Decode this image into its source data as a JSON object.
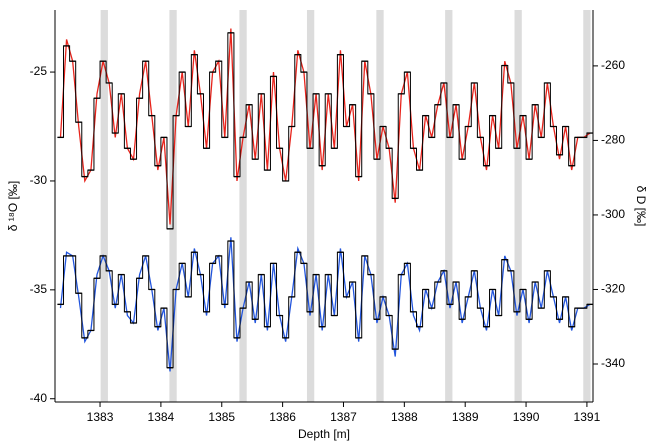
{
  "chart_data": {
    "type": "line",
    "xlabel": "Depth [m]",
    "ylabel": "δ ¹⁸O [‰]",
    "y2label": "δ D [‰]",
    "xlim": [
      1382.26,
      1391.1
    ],
    "xticks": [
      1383,
      1384,
      1385,
      1386,
      1387,
      1388,
      1389,
      1390,
      1391
    ],
    "ylim": [
      -40.15,
      -22.15
    ],
    "yticks": [
      -40,
      -35,
      -30,
      -25
    ],
    "y2lim": [
      -350.2,
      -245
    ],
    "y2ticks": [
      -340,
      -320,
      -300,
      -280,
      -260
    ],
    "bands": [
      1383.07,
      1384.2,
      1385.35,
      1386.46,
      1387.6,
      1388.73,
      1389.87,
      1391.0
    ],
    "band_width": 0.12,
    "band_color": "#dcdcdc",
    "x": [
      1382.35,
      1382.45,
      1382.55,
      1382.65,
      1382.75,
      1382.85,
      1382.95,
      1383.05,
      1383.15,
      1383.25,
      1383.35,
      1383.45,
      1383.55,
      1383.65,
      1383.75,
      1383.85,
      1383.95,
      1384.05,
      1384.15,
      1384.25,
      1384.35,
      1384.45,
      1384.55,
      1384.65,
      1384.75,
      1384.85,
      1384.95,
      1385.05,
      1385.15,
      1385.25,
      1385.35,
      1385.45,
      1385.55,
      1385.65,
      1385.75,
      1385.85,
      1385.95,
      1386.05,
      1386.15,
      1386.25,
      1386.35,
      1386.45,
      1386.55,
      1386.65,
      1386.75,
      1386.85,
      1386.95,
      1387.05,
      1387.15,
      1387.25,
      1387.35,
      1387.45,
      1387.55,
      1387.65,
      1387.75,
      1387.85,
      1387.95,
      1388.05,
      1388.15,
      1388.25,
      1388.35,
      1388.45,
      1388.55,
      1388.65,
      1388.75,
      1388.85,
      1388.95,
      1389.05,
      1389.15,
      1389.25,
      1389.35,
      1389.45,
      1389.55,
      1389.65,
      1389.75,
      1389.85,
      1389.95,
      1390.05,
      1390.15,
      1390.25,
      1390.35,
      1390.45,
      1390.55,
      1390.65,
      1390.75,
      1390.85,
      1390.95,
      1391.05
    ],
    "series": [
      {
        "color": "#e8241c",
        "style": "line",
        "values": [
          -28,
          -23.5,
          -24.5,
          -27.5,
          -30,
          -29.5,
          -26,
          -24.5,
          -25.5,
          -28,
          -26,
          -28.5,
          -29,
          -26,
          -24.5,
          -27,
          -29.5,
          -28,
          -32,
          -27,
          -25,
          -27.5,
          -24,
          -26,
          -28.5,
          -25,
          -24.5,
          -28,
          -23,
          -30,
          -28,
          -26.5,
          -29,
          -26,
          -29.5,
          -25,
          -28.5,
          -30,
          -27.5,
          -24,
          -25,
          -28.5,
          -26,
          -29.5,
          -26,
          -28.5,
          -24,
          -27.5,
          -26.5,
          -30,
          -24.5,
          -26,
          -29,
          -27.5,
          -28.5,
          -31,
          -26,
          -25,
          -28.5,
          -29.5,
          -27,
          -28,
          -26.5,
          -25.5,
          -28,
          -26.5,
          -29,
          -27.5,
          -25.5,
          -28,
          -29.5,
          -27,
          -28.5,
          -24.5,
          -25.5,
          -28.5,
          -27,
          -29,
          -26.5,
          -28,
          -25.5,
          -27.5,
          -29,
          -27.5,
          -29.5,
          -28,
          -28,
          -27.8
        ]
      },
      {
        "color": "#000000",
        "style": "step",
        "values": [
          -28,
          -23.8,
          -24.5,
          -27.3,
          -29.8,
          -29.5,
          -26.2,
          -24.5,
          -25.5,
          -27.8,
          -26,
          -28.5,
          -29,
          -26.2,
          -24.5,
          -27,
          -29.3,
          -28,
          -32.2,
          -27,
          -25,
          -27.5,
          -24.2,
          -26,
          -28.5,
          -25,
          -24.5,
          -28,
          -23.2,
          -29.8,
          -28,
          -26.5,
          -29,
          -26,
          -29.5,
          -25.2,
          -28.5,
          -30,
          -27.5,
          -24.2,
          -25,
          -28.5,
          -26,
          -29.3,
          -26,
          -28.5,
          -24.2,
          -27.5,
          -26.5,
          -29.8,
          -24.5,
          -26,
          -29,
          -27.5,
          -28.5,
          -30.8,
          -26,
          -25,
          -28.5,
          -29.5,
          -27,
          -28,
          -26.5,
          -25.5,
          -28,
          -26.5,
          -29,
          -27.5,
          -25.5,
          -28,
          -29.3,
          -27,
          -28.5,
          -24.7,
          -25.5,
          -28.5,
          -27,
          -29,
          -26.5,
          -28,
          -25.5,
          -27.5,
          -28.8,
          -27.5,
          -29.3,
          -28,
          -28,
          -27.8
        ]
      },
      {
        "color": "#2255dd",
        "style": "line",
        "axis": "y2",
        "values": [
          -325,
          -310,
          -311,
          -322,
          -334,
          -331,
          -316,
          -311,
          -315,
          -325,
          -316,
          -327,
          -329,
          -316,
          -311,
          -320,
          -331,
          -325,
          -342,
          -320,
          -313,
          -322,
          -309,
          -316,
          -327,
          -313,
          -311,
          -325,
          -306,
          -334,
          -325,
          -318,
          -329,
          -316,
          -331,
          -313,
          -327,
          -334,
          -322,
          -309,
          -313,
          -327,
          -316,
          -331,
          -316,
          -327,
          -309,
          -322,
          -318,
          -334,
          -311,
          -316,
          -329,
          -322,
          -327,
          -338,
          -316,
          -313,
          -327,
          -331,
          -320,
          -325,
          -318,
          -315,
          -325,
          -318,
          -329,
          -322,
          -315,
          -325,
          -331,
          -320,
          -327,
          -311,
          -315,
          -327,
          -320,
          -329,
          -318,
          -325,
          -315,
          -322,
          -329,
          -322,
          -331,
          -325,
          -325,
          -324
        ]
      },
      {
        "color": "#000000",
        "style": "step",
        "axis": "y2",
        "values": [
          -324,
          -311,
          -311,
          -321,
          -333,
          -331,
          -317,
          -311,
          -315,
          -324,
          -316,
          -326,
          -329,
          -317,
          -311,
          -320,
          -330,
          -325,
          -341,
          -320,
          -313,
          -322,
          -310,
          -316,
          -326,
          -313,
          -311,
          -324,
          -307,
          -333,
          -325,
          -318,
          -328,
          -316,
          -330,
          -313,
          -327,
          -333,
          -322,
          -310,
          -313,
          -326,
          -316,
          -330,
          -316,
          -327,
          -310,
          -322,
          -318,
          -333,
          -311,
          -316,
          -328,
          -322,
          -327,
          -336,
          -316,
          -313,
          -326,
          -330,
          -320,
          -325,
          -318,
          -315,
          -324,
          -318,
          -328,
          -322,
          -315,
          -325,
          -330,
          -320,
          -327,
          -312,
          -315,
          -326,
          -320,
          -328,
          -318,
          -325,
          -315,
          -322,
          -328,
          -322,
          -330,
          -325,
          -325,
          -324
        ]
      }
    ]
  }
}
